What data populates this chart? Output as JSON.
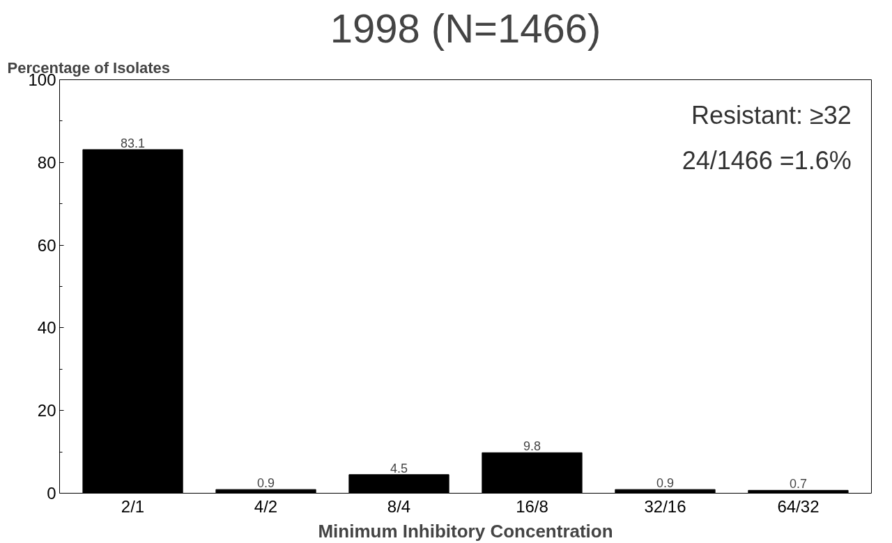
{
  "chart_data": {
    "type": "bar",
    "title": "1998 (N=1466)",
    "ylabel": "Percentage of Isolates",
    "xlabel": "Minimum Inhibitory Concentration",
    "categories": [
      "2/1",
      "4/2",
      "8/4",
      "16/8",
      "32/16",
      "64/32"
    ],
    "values": [
      83.1,
      0.9,
      4.5,
      9.8,
      0.9,
      0.7
    ],
    "color": "#000000",
    "ylim": [
      0,
      100
    ],
    "yticks": [
      0,
      20,
      40,
      60,
      80,
      100
    ],
    "grid": false,
    "data_labels": true,
    "annotations": [
      "Resistant: ≥32",
      "24/1466 =1.6%"
    ]
  }
}
